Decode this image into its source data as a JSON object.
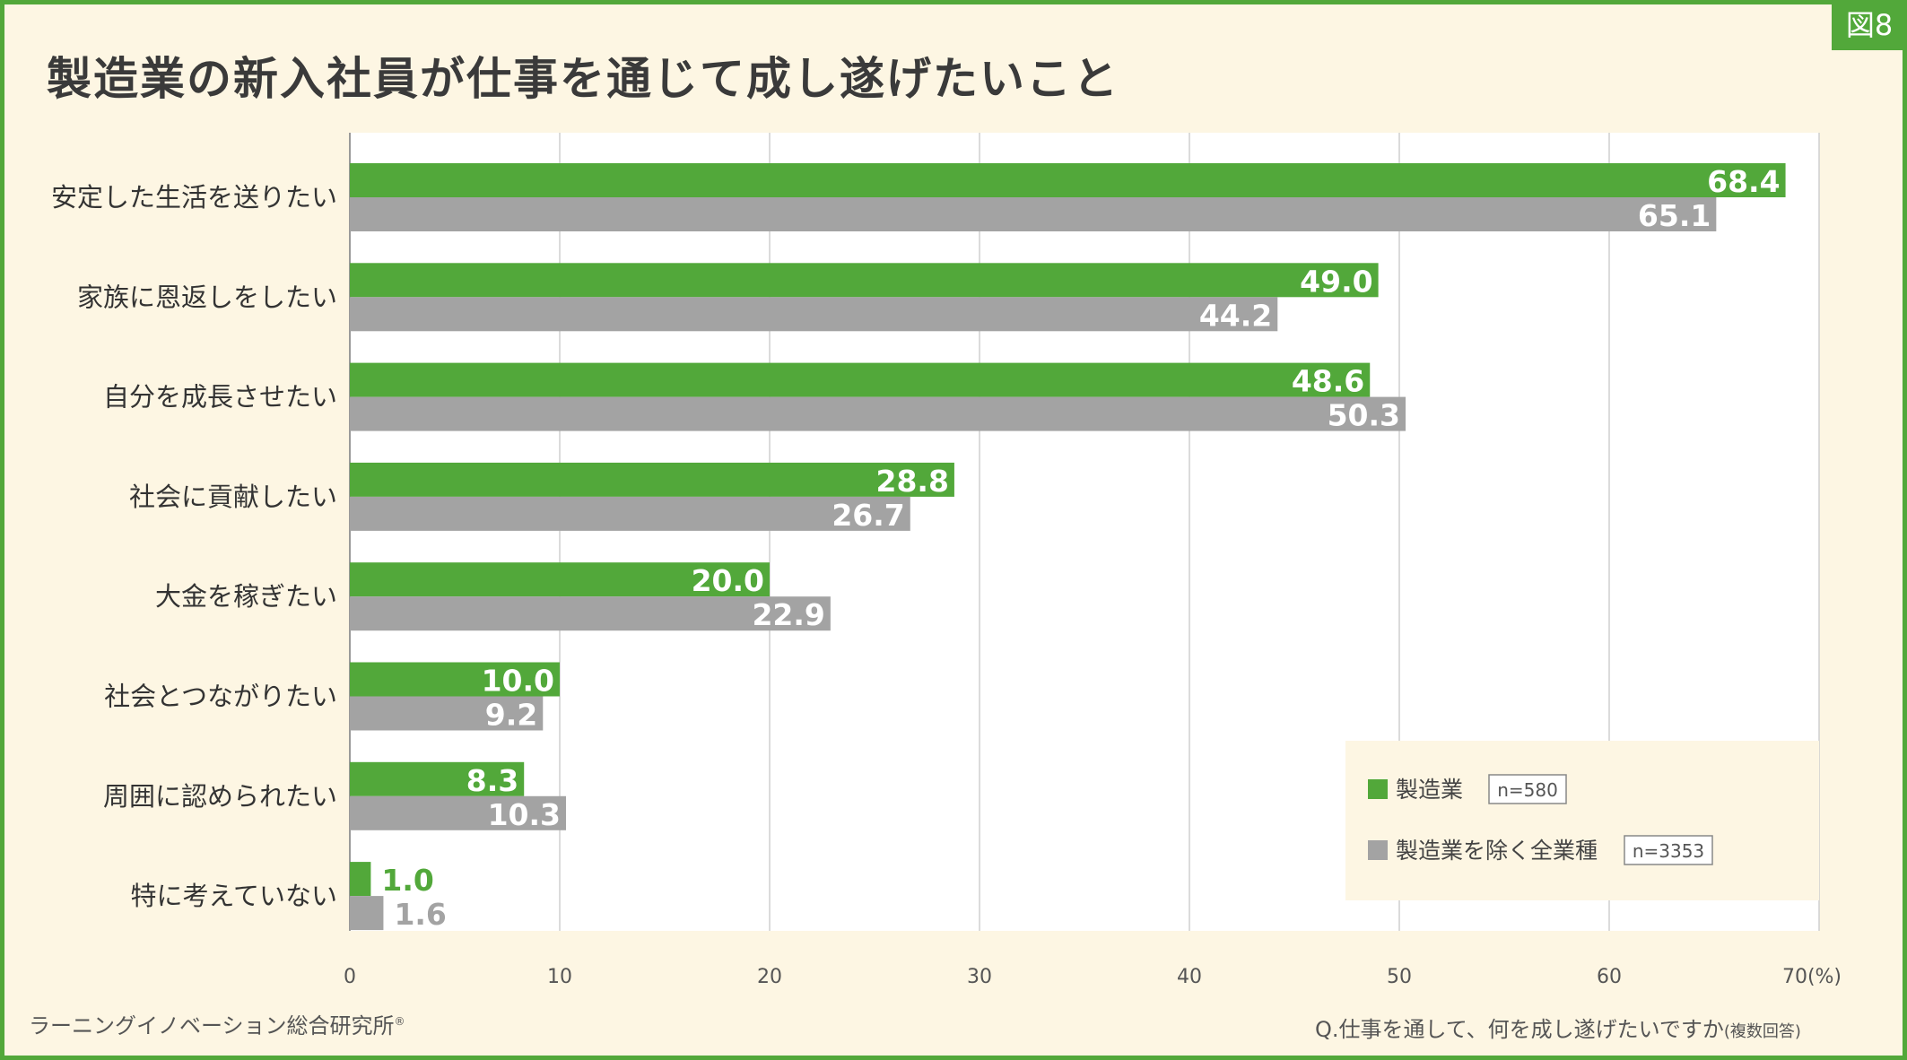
{
  "figure_label": "図8",
  "title": "製造業の新入社員が仕事を通じて成し遂げたいこと",
  "source": "ラーニングイノベーション総合研究所",
  "source_mark": "®",
  "question": "Q.仕事を通して、何を成し遂げたいですか",
  "question_note": "(複数回答)",
  "colors": {
    "accent": "#52a83a",
    "series1": "#52a83a",
    "series2": "#a3a3a3",
    "background": "#fdf6e3"
  },
  "chart_data": {
    "type": "bar",
    "orientation": "horizontal",
    "categories": [
      "安定した生活を送りたい",
      "家族に恩返しをしたい",
      "自分を成長させたい",
      "社会に貢献したい",
      "大金を稼ぎたい",
      "社会とつながりたい",
      "周囲に認められたい",
      "特に考えていない"
    ],
    "series": [
      {
        "name": "製造業",
        "n": "n=580",
        "values": [
          68.4,
          49.0,
          48.6,
          28.8,
          20.0,
          10.0,
          8.3,
          1.0
        ]
      },
      {
        "name": "製造業を除く全業種",
        "n": "n=3353",
        "values": [
          65.1,
          44.2,
          50.3,
          26.7,
          22.9,
          9.2,
          10.3,
          1.6
        ]
      }
    ],
    "xlim": [
      0,
      70
    ],
    "xticks": [
      "0",
      "10",
      "20",
      "30",
      "40",
      "50",
      "60",
      "70(%)"
    ],
    "grid": true,
    "legend_position": "bottom-right"
  }
}
